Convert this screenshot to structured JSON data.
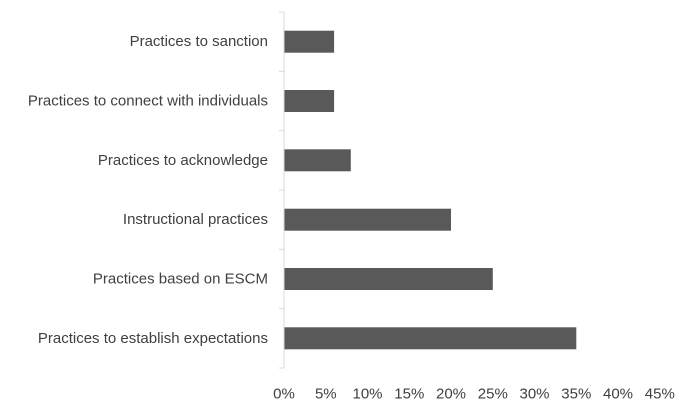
{
  "chart_data": {
    "type": "bar",
    "orientation": "horizontal",
    "categories": [
      "Practices to sanction",
      "Practices to connect with individuals",
      "Practices to acknowledge",
      "Instructional practices",
      "Practices based on ESCM",
      "Practices to establish expectations"
    ],
    "values": [
      6,
      6,
      8,
      20,
      25,
      35
    ],
    "x_ticks": [
      "0%",
      "5%",
      "10%",
      "15%",
      "20%",
      "25%",
      "30%",
      "35%",
      "40%",
      "45%"
    ],
    "xlim": [
      0,
      45
    ],
    "title": "",
    "xlabel": "",
    "ylabel": "",
    "grid": false,
    "legend": "none",
    "colors": {
      "bar": "#595959",
      "axis": "#d9d9d9",
      "text": "#404040"
    }
  }
}
